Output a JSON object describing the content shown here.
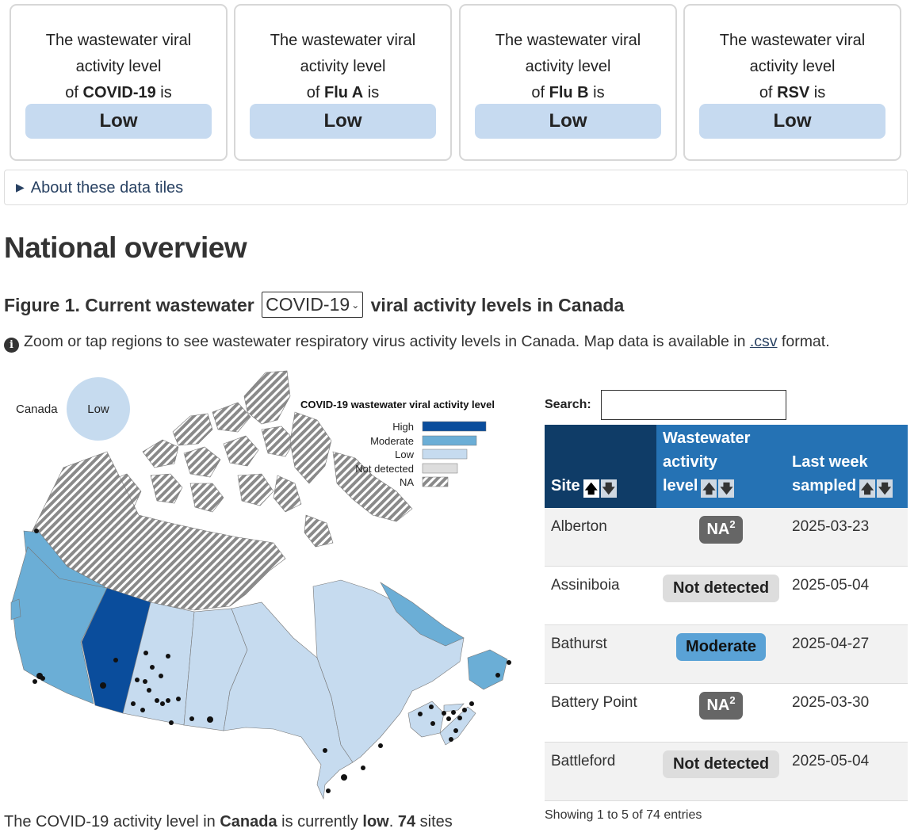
{
  "tiles": [
    {
      "line1": "The wastewater viral",
      "line2": "activity level",
      "prefix": "of ",
      "virus": "COVID-19",
      "suffix": " is",
      "level": "Low"
    },
    {
      "line1": "The wastewater viral",
      "line2": "activity level",
      "prefix": "of ",
      "virus": "Flu A",
      "suffix": " is",
      "level": "Low"
    },
    {
      "line1": "The wastewater viral",
      "line2": "activity level",
      "prefix": "of ",
      "virus": "Flu B",
      "suffix": " is",
      "level": "Low"
    },
    {
      "line1": "The wastewater viral",
      "line2": "activity level",
      "prefix": "of ",
      "virus": "RSV",
      "suffix": " is",
      "level": "Low"
    }
  ],
  "details": {
    "label": "About these data tiles"
  },
  "section": {
    "title": "National overview"
  },
  "figure": {
    "prefix": "Figure 1. Current wastewater",
    "selected_virus": "COVID-19",
    "suffix": "viral activity levels in Canada"
  },
  "note": {
    "text_before": "Zoom or tap regions to see wastewater respiratory virus activity levels in Canada. Map data is available in ",
    "link": ".csv",
    "text_after": " format."
  },
  "map": {
    "national_label": "Canada",
    "national_level": "Low",
    "legend_title": "COVID-19 wastewater viral activity level",
    "legend": [
      {
        "label": "High",
        "color": "#0a4d9c"
      },
      {
        "label": "Moderate",
        "color": "#6baed6"
      },
      {
        "label": "Low",
        "color": "#c6dbef"
      },
      {
        "label": "Not detected",
        "color": "#dddddd"
      },
      {
        "label": "NA",
        "color": "hatch"
      }
    ]
  },
  "summary": {
    "t1": "The COVID-19 activity level in ",
    "region": "Canada",
    "t2": " is currently ",
    "level": "low",
    "t3": ". ",
    "count": "74",
    "t4": " sites"
  },
  "table": {
    "search_label": "Search:",
    "search_value": "",
    "headers": {
      "site": "Site",
      "level_l1": "Wastewater",
      "level_l2": "activity",
      "level_l3": "level",
      "week_l1": "Last week",
      "week_l2": "sampled"
    },
    "rows": [
      {
        "site": "Alberton",
        "level": "NA",
        "footnote": "2",
        "date": "2025-03-23"
      },
      {
        "site": "Assiniboia",
        "level": "Not detected",
        "footnote": "",
        "date": "2025-05-04"
      },
      {
        "site": "Bathurst",
        "level": "Moderate",
        "footnote": "",
        "date": "2025-04-27"
      },
      {
        "site": "Battery Point",
        "level": "NA",
        "footnote": "2",
        "date": "2025-03-30"
      },
      {
        "site": "Battleford",
        "level": "Not detected",
        "footnote": "",
        "date": "2025-05-04"
      }
    ],
    "info": "Showing 1 to 5 of 74 entries"
  }
}
